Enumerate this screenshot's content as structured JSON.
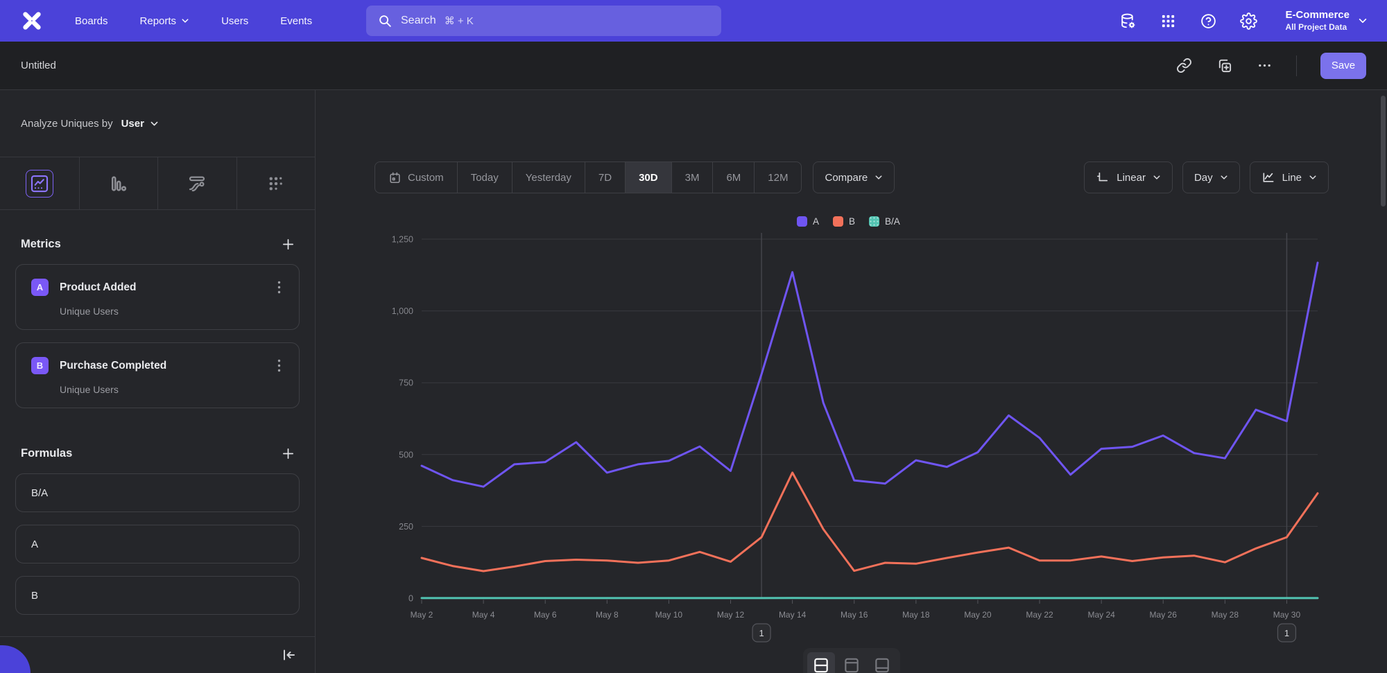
{
  "topnav": {
    "items": [
      {
        "label": "Boards"
      },
      {
        "label": "Reports"
      },
      {
        "label": "Users"
      },
      {
        "label": "Events"
      }
    ],
    "search": {
      "placeholder": "Search",
      "shortcut": "⌘ + K"
    },
    "project": {
      "name": "E-Commerce",
      "scope": "All Project Data"
    }
  },
  "report_header": {
    "title": "Untitled",
    "save_label": "Save"
  },
  "sidebar": {
    "analyze_prefix": "Analyze Uniques by",
    "analyze_entity": "User",
    "metrics_heading": "Metrics",
    "metrics": [
      {
        "letter": "A",
        "name": "Product Added",
        "measure": "Unique Users"
      },
      {
        "letter": "B",
        "name": "Purchase Completed",
        "measure": "Unique Users"
      }
    ],
    "formulas_heading": "Formulas",
    "formulas": [
      {
        "expr": "B/A"
      },
      {
        "expr": "A"
      },
      {
        "expr": "B"
      }
    ]
  },
  "controls": {
    "ranges": [
      "Custom",
      "Today",
      "Yesterday",
      "7D",
      "30D",
      "3M",
      "6M",
      "12M"
    ],
    "active_range": "30D",
    "compare": "Compare",
    "scale": "Linear",
    "interval": "Day",
    "chart_type": "Line"
  },
  "chart_data": {
    "type": "line",
    "x": [
      "May 2",
      "May 3",
      "May 4",
      "May 5",
      "May 6",
      "May 7",
      "May 8",
      "May 9",
      "May 10",
      "May 11",
      "May 12",
      "May 13",
      "May 14",
      "May 15",
      "May 16",
      "May 17",
      "May 18",
      "May 19",
      "May 20",
      "May 21",
      "May 22",
      "May 23",
      "May 24",
      "May 25",
      "May 26",
      "May 27",
      "May 28",
      "May 29",
      "May 30",
      "May 31"
    ],
    "x_tick_labels": [
      "May 2",
      "May 4",
      "May 6",
      "May 8",
      "May 10",
      "May 12",
      "May 14",
      "May 16",
      "May 18",
      "May 20",
      "May 22",
      "May 24",
      "May 26",
      "May 28",
      "May 30"
    ],
    "ylim": [
      0,
      1250
    ],
    "yticks": [
      0,
      250,
      500,
      750,
      1000,
      1250
    ],
    "grid": "horizontal",
    "legend_position": "top",
    "series": [
      {
        "name": "A",
        "metric": "Product Added · Unique Users",
        "color": "#6f55f2",
        "values": [
          461,
          411,
          388,
          466,
          474,
          543,
          437,
          466,
          478,
          528,
          443,
          780,
          1135,
          680,
          410,
          399,
          480,
          457,
          508,
          636,
          558,
          430,
          520,
          527,
          566,
          505,
          487,
          656,
          616,
          1168
        ]
      },
      {
        "name": "B",
        "metric": "Purchase Completed · Unique Users",
        "color": "#f2715a",
        "values": [
          140,
          112,
          94,
          110,
          129,
          134,
          131,
          123,
          131,
          161,
          127,
          212,
          437,
          240,
          95,
          123,
          120,
          140,
          159,
          176,
          131,
          131,
          145,
          129,
          142,
          148,
          125,
          173,
          212,
          365
        ]
      },
      {
        "name": "B/A",
        "metric": "Formula B/A",
        "color": "#52c4b2",
        "values": [
          0.3,
          0.27,
          0.24,
          0.24,
          0.27,
          0.25,
          0.3,
          0.26,
          0.27,
          0.3,
          0.29,
          0.27,
          0.39,
          0.35,
          0.23,
          0.31,
          0.25,
          0.31,
          0.31,
          0.28,
          0.23,
          0.3,
          0.28,
          0.24,
          0.25,
          0.29,
          0.26,
          0.26,
          0.34,
          0.31
        ]
      }
    ],
    "annotations": [
      {
        "x": "May 13",
        "label": "1"
      },
      {
        "x": "May 30",
        "label": "1"
      }
    ]
  },
  "colors": {
    "nav": "#4b42d9",
    "accent": "#7b72ec",
    "badge": "#7a58f7",
    "line_a": "#6f55f2",
    "line_b": "#f2715a",
    "line_ratio": "#52c4b2"
  }
}
